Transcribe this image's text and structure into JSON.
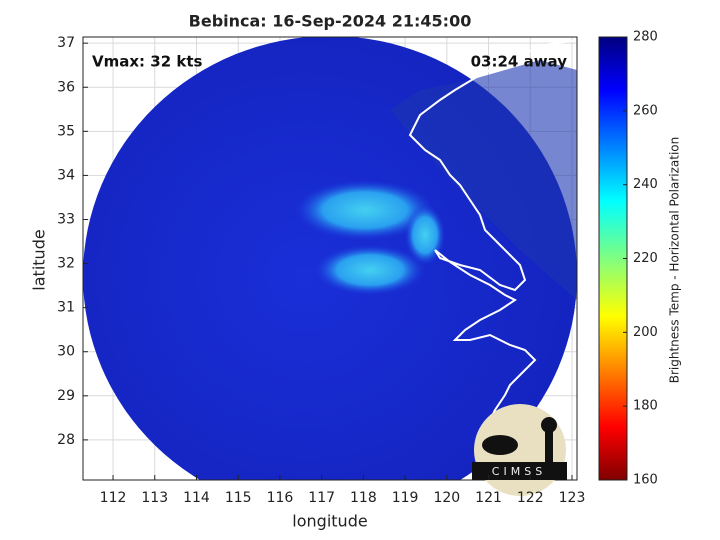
{
  "chart_data": {
    "type": "map",
    "title": "Bebinca: 16-Sep-2024 21:45:00",
    "annotations": [
      "Vmax: 32 kts",
      "03:24 away"
    ],
    "xlabel": "longitude",
    "ylabel": "latitude",
    "xlim": [
      111.28,
      123.12
    ],
    "ylim": [
      27.09,
      37.14
    ],
    "xticks": [
      112,
      113,
      114,
      115,
      116,
      117,
      118,
      119,
      120,
      121,
      122,
      123
    ],
    "yticks": [
      28,
      29,
      30,
      31,
      32,
      33,
      34,
      35,
      36,
      37
    ],
    "grid": true,
    "colorbar": {
      "label": "Brightness Temp - Horizontal Polarization",
      "lim": [
        160,
        280
      ],
      "ticks": [
        160,
        180,
        200,
        220,
        240,
        260,
        280
      ]
    },
    "logo_text": "CIMSS"
  }
}
